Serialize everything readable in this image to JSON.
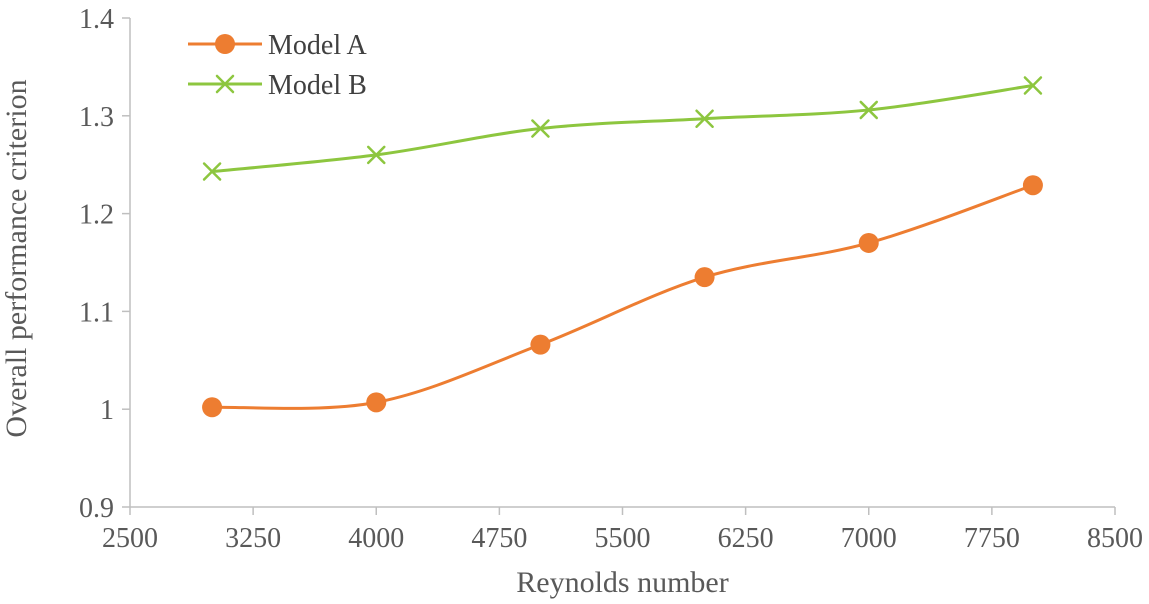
{
  "chart_data": {
    "type": "line",
    "title": "",
    "xlabel": "Reynolds number",
    "ylabel": "Overall performance criterion",
    "xlim": [
      2500,
      8500
    ],
    "ylim": [
      0.9,
      1.4
    ],
    "x_ticks": [
      2500,
      3250,
      4000,
      4750,
      5500,
      6250,
      7000,
      7750,
      8500
    ],
    "x_tick_labels": [
      "2500",
      "3250",
      "4000",
      "4750",
      "5500",
      "6250",
      "7000",
      "7750",
      "8500"
    ],
    "y_ticks": [
      0.9,
      1.0,
      1.1,
      1.2,
      1.3,
      1.4
    ],
    "y_tick_labels": [
      "0.9",
      "1",
      "1.1",
      "1.2",
      "1.3",
      "1.4"
    ],
    "grid": false,
    "smooth": true,
    "legend_position": "top-left",
    "x": [
      3000,
      4000,
      5000,
      6000,
      7000,
      8000
    ],
    "series": [
      {
        "name": "Model A",
        "marker": "circle",
        "color": "#ED7D31",
        "values": [
          1.002,
          1.007,
          1.066,
          1.135,
          1.17,
          1.229
        ]
      },
      {
        "name": "Model B",
        "marker": "x",
        "color": "#8DC63F",
        "values": [
          1.243,
          1.26,
          1.287,
          1.297,
          1.306,
          1.331
        ]
      }
    ]
  }
}
